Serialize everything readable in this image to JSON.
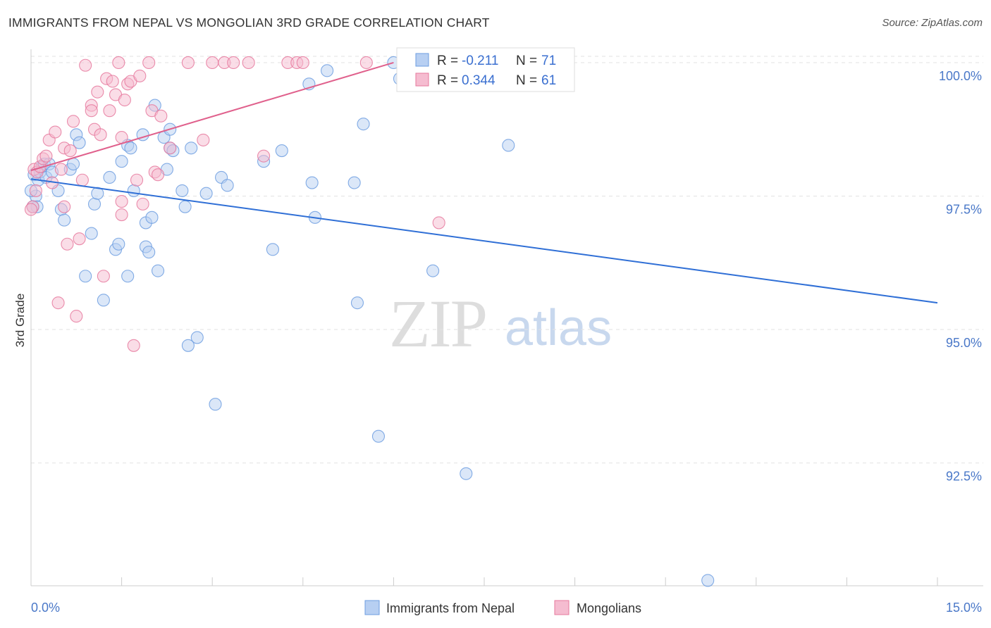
{
  "title": "IMMIGRANTS FROM NEPAL VS MONGOLIAN 3RD GRADE CORRELATION CHART",
  "source": "Source: ZipAtlas.com",
  "watermark": {
    "zip": "ZIP",
    "atlas": "atlas"
  },
  "chart_data": {
    "type": "scatter",
    "title": "IMMIGRANTS FROM NEPAL VS MONGOLIAN 3RD GRADE CORRELATION CHART",
    "xlabel": "",
    "ylabel": "3rd Grade",
    "xlim": [
      0,
      15
    ],
    "ylim": [
      90.2,
      100.25
    ],
    "x_tick_labels": [
      "0.0%",
      "15.0%"
    ],
    "y_ticks": [
      92.5,
      95.0,
      97.5,
      100.0
    ],
    "y_tick_labels": [
      "92.5%",
      "95.0%",
      "97.5%",
      "100.0%"
    ],
    "grid": true,
    "legend_position": "top-center",
    "series": [
      {
        "name": "Immigrants from Nepal",
        "color": "#6d9de0",
        "fill": "#b7cff2",
        "R": "-0.211",
        "N": "71",
        "trend": {
          "x": [
            0,
            15
          ],
          "y": [
            97.82,
            95.5
          ]
        },
        "points": [
          [
            0.05,
            97.9
          ],
          [
            0.08,
            97.5
          ],
          [
            0.1,
            97.3
          ],
          [
            0.12,
            97.8
          ],
          [
            0.15,
            97.95
          ],
          [
            0.18,
            98.05
          ],
          [
            0.22,
            98.1
          ],
          [
            0.25,
            97.85
          ],
          [
            0.3,
            98.1
          ],
          [
            0.35,
            97.95
          ],
          [
            0.45,
            97.6
          ],
          [
            0.5,
            97.25
          ],
          [
            0.55,
            97.05
          ],
          [
            0.65,
            98.0
          ],
          [
            0.7,
            98.1
          ],
          [
            0.75,
            98.65
          ],
          [
            0.8,
            98.5
          ],
          [
            0.9,
            96.0
          ],
          [
            1.0,
            96.8
          ],
          [
            1.05,
            97.35
          ],
          [
            1.1,
            97.55
          ],
          [
            1.2,
            95.55
          ],
          [
            1.3,
            97.85
          ],
          [
            1.4,
            96.5
          ],
          [
            1.45,
            96.6
          ],
          [
            1.5,
            98.15
          ],
          [
            1.6,
            96.0
          ],
          [
            1.6,
            98.45
          ],
          [
            1.65,
            98.4
          ],
          [
            1.7,
            97.6
          ],
          [
            1.85,
            98.65
          ],
          [
            1.9,
            97.0
          ],
          [
            1.9,
            96.55
          ],
          [
            1.95,
            96.45
          ],
          [
            2.0,
            97.1
          ],
          [
            2.05,
            99.2
          ],
          [
            2.1,
            96.1
          ],
          [
            2.2,
            98.6
          ],
          [
            2.25,
            98.0
          ],
          [
            2.3,
            98.75
          ],
          [
            2.3,
            98.4
          ],
          [
            2.35,
            98.35
          ],
          [
            2.5,
            97.6
          ],
          [
            2.55,
            97.3
          ],
          [
            2.6,
            94.7
          ],
          [
            2.65,
            98.4
          ],
          [
            2.75,
            94.85
          ],
          [
            2.9,
            97.55
          ],
          [
            3.05,
            93.6
          ],
          [
            3.15,
            97.85
          ],
          [
            3.25,
            97.7
          ],
          [
            3.85,
            98.15
          ],
          [
            4.0,
            96.5
          ],
          [
            4.15,
            98.35
          ],
          [
            4.6,
            99.6
          ],
          [
            4.65,
            97.75
          ],
          [
            4.7,
            97.1
          ],
          [
            4.9,
            99.85
          ],
          [
            5.35,
            97.75
          ],
          [
            5.4,
            95.5
          ],
          [
            5.5,
            98.85
          ],
          [
            5.75,
            93.0
          ],
          [
            6.0,
            100.0
          ],
          [
            6.1,
            99.7
          ],
          [
            6.6,
            100.0
          ],
          [
            6.65,
            96.1
          ],
          [
            7.2,
            92.3
          ],
          [
            7.9,
            98.45
          ],
          [
            11.2,
            90.3
          ],
          [
            0.03,
            97.3
          ],
          [
            0.0,
            97.6
          ]
        ]
      },
      {
        "name": "Mongolians",
        "color": "#e6799d",
        "fill": "#f5bcd0",
        "R": "0.344",
        "N": "61",
        "trend": {
          "x": [
            0,
            6.0
          ],
          "y": [
            97.98,
            100.0
          ]
        },
        "points": [
          [
            0.03,
            97.3
          ],
          [
            0.05,
            98.0
          ],
          [
            0.1,
            97.95
          ],
          [
            0.15,
            98.05
          ],
          [
            0.2,
            98.2
          ],
          [
            0.25,
            98.25
          ],
          [
            0.3,
            98.55
          ],
          [
            0.35,
            97.75
          ],
          [
            0.4,
            98.7
          ],
          [
            0.45,
            95.5
          ],
          [
            0.5,
            98.0
          ],
          [
            0.55,
            97.3
          ],
          [
            0.55,
            98.4
          ],
          [
            0.6,
            96.6
          ],
          [
            0.65,
            98.35
          ],
          [
            0.7,
            98.9
          ],
          [
            0.75,
            95.25
          ],
          [
            0.8,
            96.7
          ],
          [
            0.85,
            97.8
          ],
          [
            0.9,
            99.95
          ],
          [
            1.0,
            99.2
          ],
          [
            1.0,
            99.1
          ],
          [
            1.05,
            98.75
          ],
          [
            1.1,
            99.45
          ],
          [
            1.15,
            98.65
          ],
          [
            1.2,
            96.0
          ],
          [
            1.25,
            99.7
          ],
          [
            1.3,
            99.1
          ],
          [
            1.35,
            99.65
          ],
          [
            1.4,
            99.4
          ],
          [
            1.45,
            100.0
          ],
          [
            1.5,
            98.6
          ],
          [
            1.5,
            97.4
          ],
          [
            1.5,
            97.15
          ],
          [
            1.55,
            99.3
          ],
          [
            1.6,
            99.6
          ],
          [
            1.65,
            99.65
          ],
          [
            1.7,
            94.7
          ],
          [
            1.75,
            97.8
          ],
          [
            1.8,
            99.75
          ],
          [
            1.85,
            97.35
          ],
          [
            1.95,
            100.0
          ],
          [
            2.0,
            99.1
          ],
          [
            2.05,
            97.95
          ],
          [
            2.1,
            97.9
          ],
          [
            2.15,
            99.0
          ],
          [
            2.3,
            98.4
          ],
          [
            2.6,
            100.0
          ],
          [
            2.85,
            98.55
          ],
          [
            3.0,
            100.0
          ],
          [
            3.2,
            100.0
          ],
          [
            3.35,
            100.0
          ],
          [
            3.6,
            100.0
          ],
          [
            3.85,
            98.25
          ],
          [
            4.25,
            100.0
          ],
          [
            4.4,
            100.0
          ],
          [
            4.5,
            100.0
          ],
          [
            5.55,
            100.0
          ],
          [
            6.75,
            97.0
          ],
          [
            0.0,
            97.25
          ],
          [
            0.08,
            97.6
          ]
        ]
      }
    ]
  },
  "legend": {
    "rows": [
      {
        "r_label": "R = ",
        "r_value": "-0.211",
        "n_label": "N = ",
        "n_value": "71"
      },
      {
        "r_label": "R = ",
        "r_value": "0.344",
        "n_label": "N = ",
        "n_value": "61"
      }
    ]
  },
  "bottom_legend": [
    "Immigrants from Nepal",
    "Mongolians"
  ]
}
